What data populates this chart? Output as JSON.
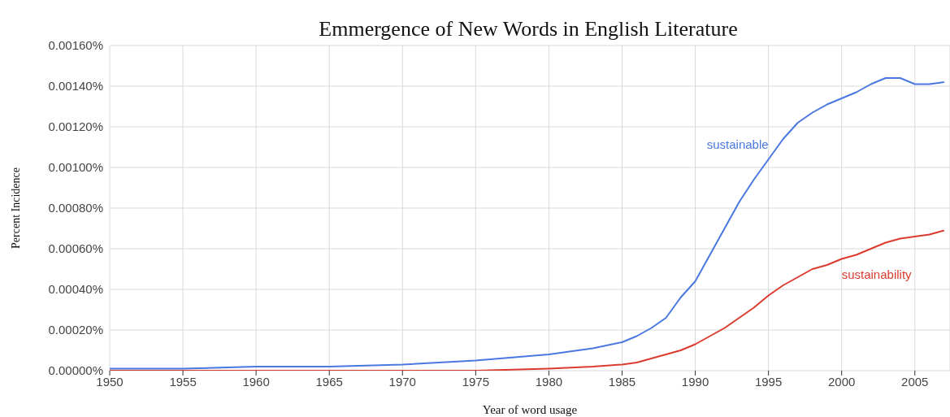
{
  "chart_data": {
    "type": "line",
    "title": "Emmergence of New Words in English Literature",
    "xlabel": "Year of word usage",
    "ylabel": "Percent Incidence",
    "x": [
      1950,
      1955,
      1960,
      1965,
      1970,
      1975,
      1980,
      1983,
      1985,
      1986,
      1987,
      1988,
      1989,
      1990,
      1991,
      1992,
      1993,
      1994,
      1995,
      1996,
      1997,
      1998,
      1999,
      2000,
      2001,
      2002,
      2003,
      2004,
      2005,
      2006,
      2007
    ],
    "series": [
      {
        "name": "sustainable",
        "color": "#4a78e0",
        "values": [
          1e-05,
          1e-05,
          2e-05,
          2e-05,
          3e-05,
          5e-05,
          8e-05,
          0.00011,
          0.00014,
          0.00017,
          0.00021,
          0.00026,
          0.00036,
          0.00044,
          0.00057,
          0.0007,
          0.00083,
          0.00094,
          0.00104,
          0.00114,
          0.00122,
          0.00127,
          0.00131,
          0.00134,
          0.00137,
          0.00141,
          0.00144,
          0.00144,
          0.00141,
          0.00141,
          0.00142
        ]
      },
      {
        "name": "sustainability",
        "color": "#db3b2e",
        "values": [
          0,
          0,
          0,
          0,
          0,
          0,
          1e-05,
          2e-05,
          3e-05,
          4e-05,
          6e-05,
          8e-05,
          0.0001,
          0.00013,
          0.00017,
          0.00021,
          0.00026,
          0.00031,
          0.00037,
          0.00042,
          0.00046,
          0.0005,
          0.00052,
          0.00055,
          0.00057,
          0.0006,
          0.00063,
          0.00065,
          0.00066,
          0.00067,
          0.00069
        ]
      }
    ],
    "xlim": [
      1950,
      2007.4
    ],
    "xticks": [
      1950,
      1955,
      1960,
      1965,
      1970,
      1975,
      1980,
      1985,
      1990,
      1995,
      2000,
      2005
    ],
    "ylim": [
      0,
      0.0016
    ],
    "yticks": [
      {
        "value": 0,
        "label": "0.00000%"
      },
      {
        "value": 0.0002,
        "label": "0.00020%"
      },
      {
        "value": 0.0004,
        "label": "0.00040%"
      },
      {
        "value": 0.0006,
        "label": "0.00060%"
      },
      {
        "value": 0.0008,
        "label": "0.00080%"
      },
      {
        "value": 0.001,
        "label": "0.00100%"
      },
      {
        "value": 0.0012,
        "label": "0.00120%"
      },
      {
        "value": 0.0014,
        "label": "0.00140%"
      },
      {
        "value": 0.0016,
        "label": "0.00160%"
      }
    ],
    "grid": true,
    "legend": false,
    "marker": "none",
    "line_style": "solid"
  }
}
